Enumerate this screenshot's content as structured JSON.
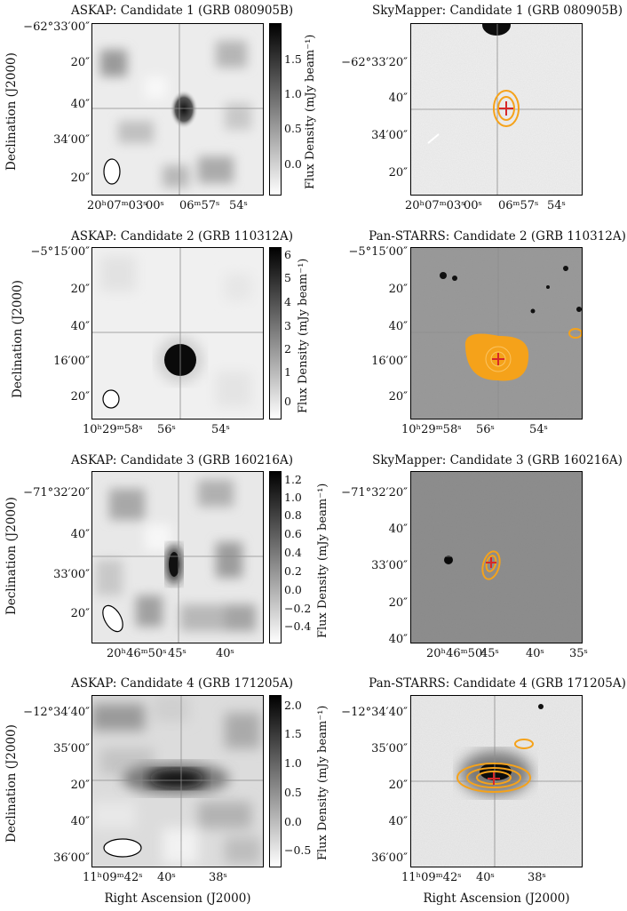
{
  "rows": [
    {
      "radio": {
        "title": "ASKAP: Candidate 1 (GRB 080905B)",
        "dec_ticks": [
          "−62°33′00″",
          "20″",
          "40″",
          "34′00″",
          "20″"
        ],
        "ra_ticks": [
          "20ʰ07ᵐ03ˢ",
          "00ˢ",
          "06ᵐ57ˢ",
          "54ˢ"
        ],
        "colorbar_ticks": [
          "1.5",
          "1.0",
          "0.5",
          "0.0"
        ],
        "colorbar_label": "Flux Density (mJy beam⁻¹)"
      },
      "optical": {
        "title": "SkyMapper: Candidate 1 (GRB 080905B)",
        "dec_ticks": [
          "−62°33′20″",
          "40″",
          "34′00″",
          "20″"
        ],
        "ra_ticks": [
          "20ʰ07ᵐ03ˢ",
          "00ˢ",
          "06ᵐ57ˢ",
          "54ˢ"
        ]
      }
    },
    {
      "radio": {
        "title": "ASKAP: Candidate 2 (GRB 110312A)",
        "dec_ticks": [
          "−5°15′00″",
          "20″",
          "40″",
          "16′00″",
          "20″"
        ],
        "ra_ticks": [
          "10ʰ29ᵐ58ˢ",
          "56ˢ",
          "54ˢ"
        ],
        "colorbar_ticks": [
          "6",
          "5",
          "4",
          "3",
          "2",
          "1",
          "0"
        ],
        "colorbar_label": "Flux Density (mJy beam⁻¹)"
      },
      "optical": {
        "title": "Pan-STARRS: Candidate 2 (GRB 110312A)",
        "dec_ticks": [
          "−5°15′00″",
          "20″",
          "40″",
          "16′00″",
          "20″"
        ],
        "ra_ticks": [
          "10ʰ29ᵐ58ˢ",
          "56ˢ",
          "54ˢ"
        ]
      }
    },
    {
      "radio": {
        "title": "ASKAP: Candidate 3 (GRB 160216A)",
        "dec_ticks": [
          "−71°32′20″",
          "40″",
          "33′00″",
          "20″"
        ],
        "ra_ticks": [
          "20ʰ46ᵐ50ˢ",
          "45ˢ",
          "40ˢ"
        ],
        "colorbar_ticks": [
          "1.2",
          "1.0",
          "0.8",
          "0.6",
          "0.4",
          "0.2",
          "0.0",
          "−0.2",
          "−0.4"
        ],
        "colorbar_label": "Flux Density (mJy beam⁻¹)"
      },
      "optical": {
        "title": "SkyMapper: Candidate 3 (GRB 160216A)",
        "dec_ticks": [
          "−71°32′20″",
          "40″",
          "33′00″",
          "20″",
          "40″"
        ],
        "ra_ticks": [
          "20ʰ46ᵐ50ˢ",
          "45ˢ",
          "40ˢ",
          "35ˢ"
        ]
      }
    },
    {
      "radio": {
        "title": "ASKAP: Candidate 4 (GRB 171205A)",
        "dec_ticks": [
          "−12°34′40″",
          "35′00″",
          "20″",
          "40″",
          "36′00″"
        ],
        "ra_ticks": [
          "11ʰ09ᵐ42ˢ",
          "40ˢ",
          "38ˢ"
        ],
        "colorbar_ticks": [
          "2.0",
          "1.5",
          "1.0",
          "0.5",
          "0.0",
          "−0.5"
        ],
        "colorbar_label": "Flux Density (mJy beam⁻¹)"
      },
      "optical": {
        "title": "Pan-STARRS: Candidate 4 (GRB 171205A)",
        "dec_ticks": [
          "−12°34′40″",
          "35′00″",
          "20″",
          "40″",
          "36′00″"
        ],
        "ra_ticks": [
          "11ʰ09ᵐ42ˢ",
          "40ˢ",
          "38ˢ"
        ]
      }
    }
  ],
  "axis_labels": {
    "y": "Declination (J2000)",
    "x": "Right Ascension (J2000)"
  },
  "colors": {
    "contour": "#f5a21a",
    "marker": "#d62728",
    "crosshair": "#8c8c8c"
  }
}
